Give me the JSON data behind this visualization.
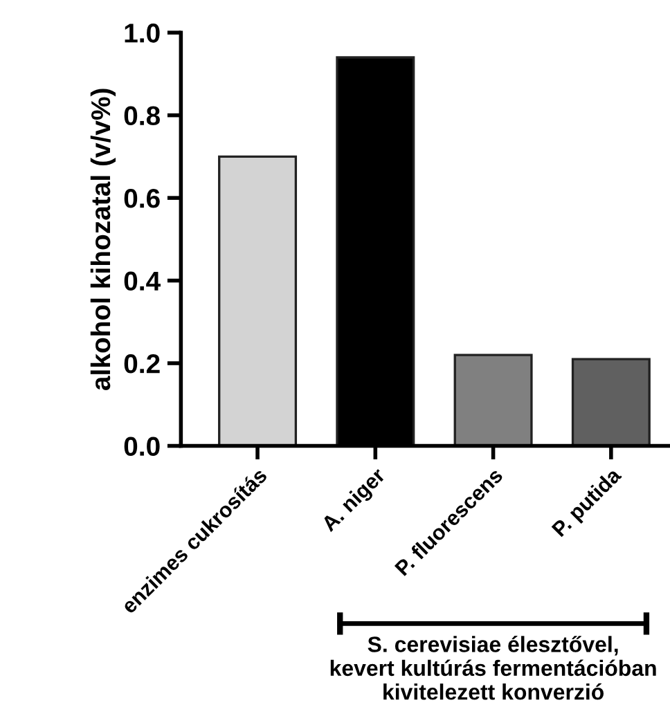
{
  "chart_data": {
    "type": "bar",
    "ylabel": "alkohol kihozatal (v/v%)",
    "categories": [
      "enzimes cukrosítás",
      "A. niger",
      "P. fluorescens",
      "P. putida"
    ],
    "values": [
      0.7,
      0.94,
      0.22,
      0.21
    ],
    "colors": [
      "#d3d3d3",
      "#000000",
      "#808080",
      "#606060"
    ],
    "ylim": [
      0,
      1
    ],
    "yticks": [
      {
        "value": 0,
        "label": "0.0"
      },
      {
        "value": 0.2,
        "label": "0.2"
      },
      {
        "value": 0.4,
        "label": "0.4"
      },
      {
        "value": 0.6,
        "label": "0.6"
      },
      {
        "value": 0.8,
        "label": "0.8"
      },
      {
        "value": 1,
        "label": "1.0"
      }
    ],
    "grid": false,
    "annotations": [
      "S. cerevisiae élesztővel,\nkevert kultúrás fermentációban\nkivitelezett konverzió"
    ]
  }
}
